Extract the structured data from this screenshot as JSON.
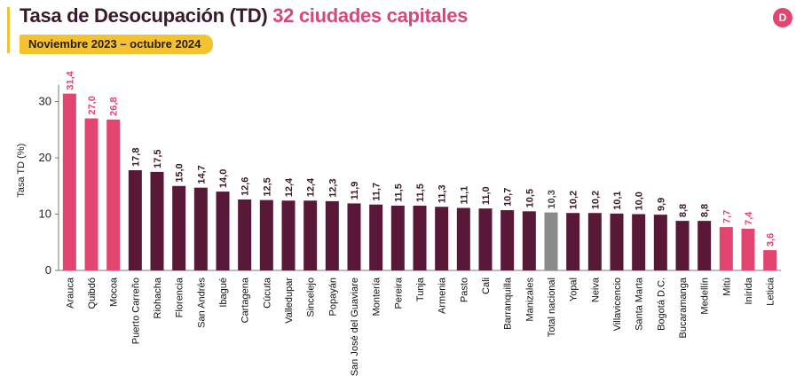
{
  "header": {
    "title_main": "Tasa de Desocupación (TD)",
    "title_highlight": "32 ciudades capitales",
    "period": "Noviembre 2023 – octubre 2024",
    "logo_letter": "D"
  },
  "colors": {
    "pink": "#e2456f",
    "maroon": "#5a1838",
    "gray": "#8a8a8a",
    "accent": "#f2c230"
  },
  "chart_data": {
    "type": "bar",
    "ylabel": "Tasa TD (%)",
    "ylim": [
      0,
      33
    ],
    "yticks": [
      0,
      10,
      20,
      30
    ],
    "categories": [
      "Arauca",
      "Quibdó",
      "Mocoa",
      "Puerto Carreño",
      "Riohacha",
      "Florencia",
      "San Andrés",
      "Ibagué",
      "Cartagena",
      "Cúcuta",
      "Valledupar",
      "Sincelejo",
      "Popayán",
      "San José del Guaviare",
      "Montería",
      "Pereira",
      "Tunja",
      "Armenia",
      "Pasto",
      "Cali",
      "Barranquilla",
      "Manizales",
      "Total nacional",
      "Yopal",
      "Neiva",
      "Villavicencio",
      "Santa Marta",
      "Bogotá D.C.",
      "Bucaramanga",
      "Medellín",
      "Mitú",
      "Inírida",
      "Leticia"
    ],
    "values": [
      31.4,
      27.0,
      26.8,
      17.8,
      17.5,
      15.0,
      14.7,
      14.0,
      12.6,
      12.5,
      12.4,
      12.4,
      12.3,
      11.9,
      11.7,
      11.5,
      11.5,
      11.3,
      11.1,
      11.0,
      10.7,
      10.5,
      10.3,
      10.2,
      10.2,
      10.1,
      10.0,
      9.9,
      8.8,
      8.8,
      7.7,
      7.4,
      3.6
    ],
    "value_labels": [
      "31,4",
      "27,0",
      "26,8",
      "17,8",
      "17,5",
      "15,0",
      "14,7",
      "14,0",
      "12,6",
      "12,5",
      "12,4",
      "12,4",
      "12,3",
      "11,9",
      "11,7",
      "11,5",
      "11,5",
      "11,3",
      "11,1",
      "11,0",
      "10,7",
      "10,5",
      "10,3",
      "10,2",
      "10,2",
      "10,1",
      "10,0",
      "9,9",
      "8,8",
      "8,8",
      "7,7",
      "7,4",
      "3,6"
    ],
    "bar_colors": [
      "pink",
      "pink",
      "pink",
      "maroon",
      "maroon",
      "maroon",
      "maroon",
      "maroon",
      "maroon",
      "maroon",
      "maroon",
      "maroon",
      "maroon",
      "maroon",
      "maroon",
      "maroon",
      "maroon",
      "maroon",
      "maroon",
      "maroon",
      "maroon",
      "maroon",
      "gray",
      "maroon",
      "maroon",
      "maroon",
      "maroon",
      "maroon",
      "maroon",
      "maroon",
      "pink",
      "pink",
      "pink"
    ],
    "grid": false,
    "legend": "none"
  }
}
